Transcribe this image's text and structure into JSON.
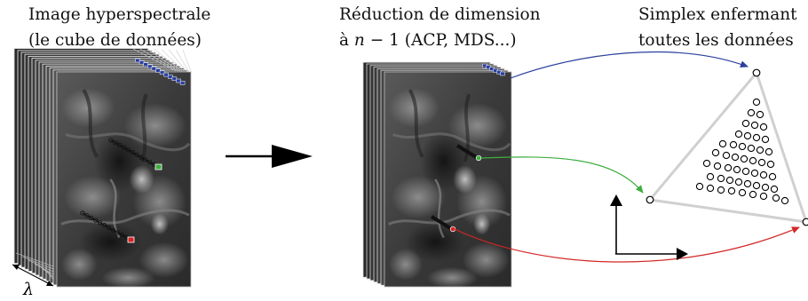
{
  "captions": {
    "left": {
      "line1": "Image hyperspectrale",
      "line2": "(le cube de données)"
    },
    "middle": {
      "line1": "Réduction de dimension",
      "line2_prefix": "à ",
      "line2_var": "n",
      "line2_rest": " − 1 (ACP, MDS...)"
    },
    "right": {
      "line1": "Simplex enfermant",
      "line2": "toutes les données"
    },
    "lambda": "λ"
  },
  "colors": {
    "arrow_blue": "#2a3f9e",
    "arrow_green": "#3fae3f",
    "arrow_red": "#d42626",
    "simplex_edge": "#d0d0d0",
    "big_arrow": "#000000"
  },
  "icons": {
    "big_arrow": "right-arrow-icon",
    "axes": "axes-icon"
  }
}
